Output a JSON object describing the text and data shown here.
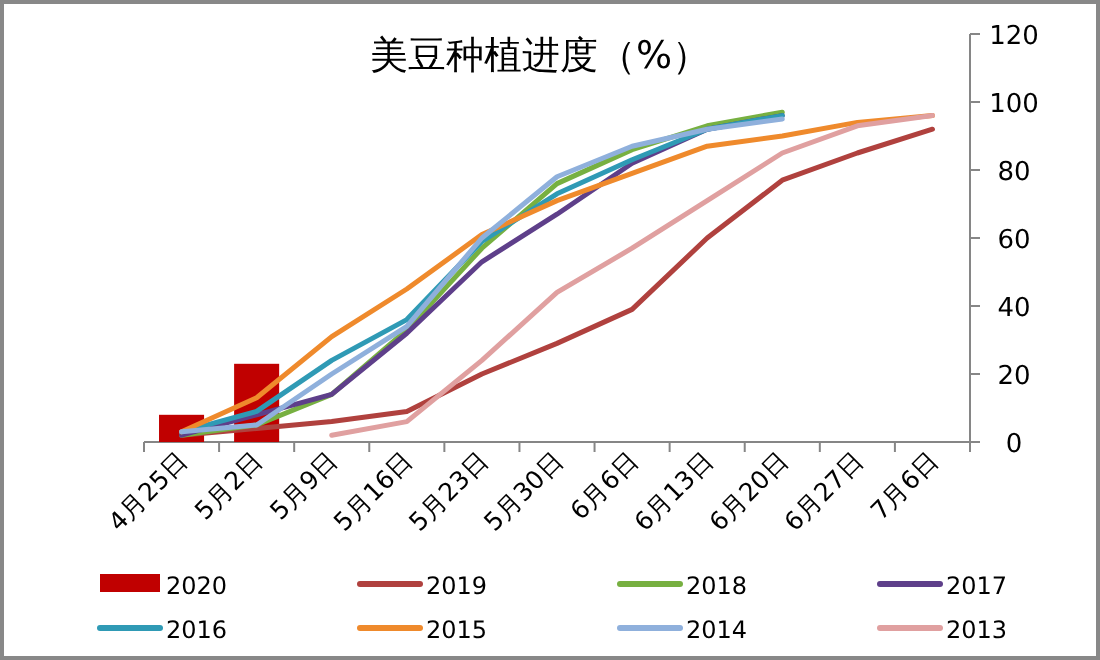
{
  "chart_data": {
    "type": "line",
    "title": "美豆种植进度（%）",
    "categories": [
      "4月25日",
      "5月2日",
      "5月9日",
      "5月16日",
      "5月23日",
      "5月30日",
      "6月6日",
      "6月13日",
      "6月20日",
      "6月27日",
      "7月6日"
    ],
    "series": [
      {
        "name": "2020",
        "type": "bar",
        "color": "#c00000",
        "values": [
          8,
          23,
          null,
          null,
          null,
          null,
          null,
          null,
          null,
          null,
          null
        ]
      },
      {
        "name": "2019",
        "color": "#b0413e",
        "values": [
          2,
          4,
          6,
          9,
          20,
          29,
          39,
          60,
          77,
          85,
          92
        ]
      },
      {
        "name": "2018",
        "color": "#77b041",
        "values": [
          2,
          5,
          14,
          33,
          57,
          76,
          86,
          93,
          97,
          null,
          null
        ]
      },
      {
        "name": "2017",
        "color": "#5e3f8a",
        "values": [
          2,
          8,
          14,
          32,
          53,
          67,
          82,
          92,
          96,
          null,
          null
        ]
      },
      {
        "name": "2016",
        "color": "#2f9ab5",
        "values": [
          3,
          9,
          24,
          36,
          59,
          73,
          83,
          92,
          96,
          null,
          null
        ]
      },
      {
        "name": "2015",
        "color": "#ef8a2c",
        "values": [
          3,
          13,
          31,
          45,
          61,
          71,
          79,
          87,
          90,
          94,
          96
        ]
      },
      {
        "name": "2014",
        "color": "#8fb0dc",
        "values": [
          3,
          5,
          20,
          34,
          60,
          78,
          87,
          92,
          95,
          null,
          null
        ]
      },
      {
        "name": "2013",
        "color": "#e0a0a0",
        "values": [
          null,
          null,
          2,
          6,
          24,
          44,
          57,
          71,
          85,
          93,
          96
        ]
      }
    ],
    "ylim": [
      0,
      120
    ],
    "yticks": [
      0,
      20,
      40,
      60,
      80,
      100,
      120
    ],
    "grid": false,
    "legend": "bottom",
    "marker": "none",
    "line_style": "solid"
  }
}
